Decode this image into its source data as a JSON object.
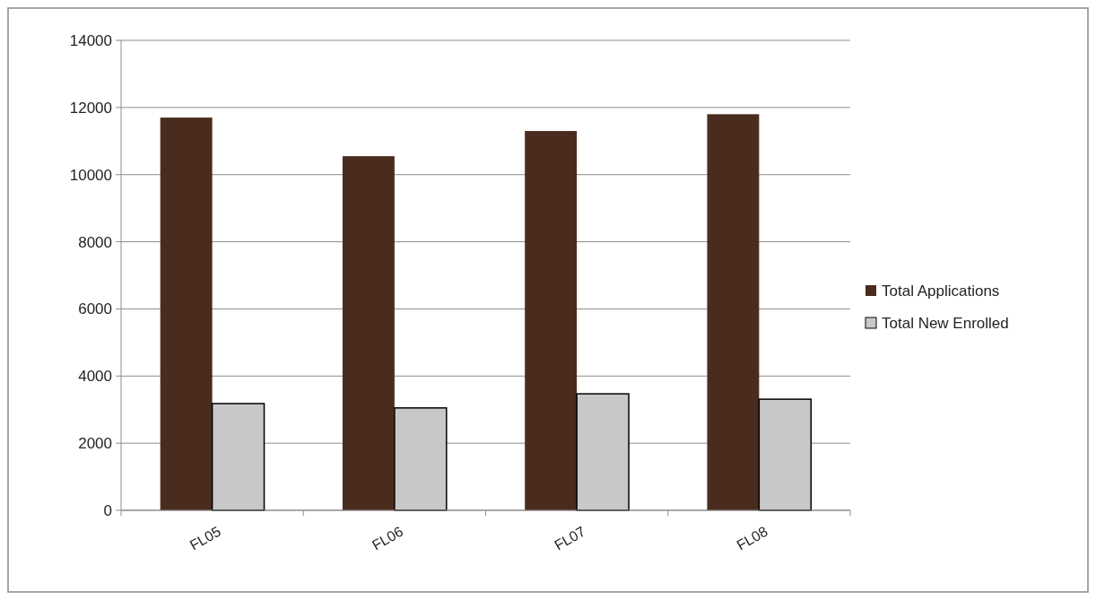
{
  "chart_data": {
    "type": "bar",
    "categories": [
      "FL05",
      "FL06",
      "FL07",
      "FL08"
    ],
    "series": [
      {
        "name": "Total Applications",
        "color": "#4a2c1e",
        "values": [
          11700,
          10550,
          11300,
          11800
        ]
      },
      {
        "name": "Total New Enrolled",
        "color": "#c8c8c8",
        "values": [
          3180,
          3050,
          3470,
          3310
        ]
      }
    ],
    "ylim": [
      0,
      14000
    ],
    "yticks": [
      0,
      2000,
      4000,
      6000,
      8000,
      10000,
      12000,
      14000
    ],
    "grid": "y",
    "legend": "right"
  }
}
